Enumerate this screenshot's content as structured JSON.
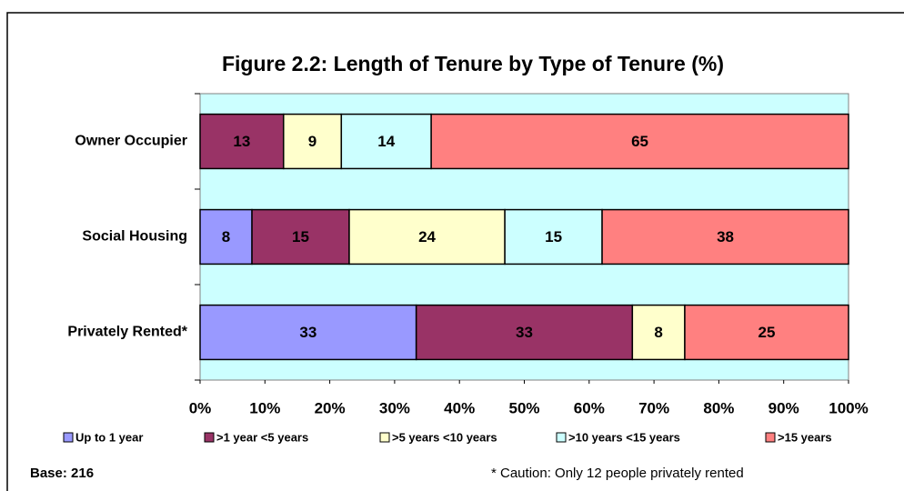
{
  "chart_data": {
    "type": "bar",
    "orientation": "horizontal",
    "stacking": "percent",
    "title": "Figure 2.2: Length of Tenure by Type of Tenure (%)",
    "categories": [
      "Owner Occupier",
      "Social Housing",
      "Privately Rented*"
    ],
    "series": [
      {
        "name": "Up to 1 year",
        "color": "#9999ff",
        "values": [
          null,
          8,
          33
        ]
      },
      {
        "name": ">1 year <5 years",
        "color": "#993366",
        "values": [
          13,
          15,
          33
        ]
      },
      {
        "name": ">5 years <10 years",
        "color": "#ffffcc",
        "values": [
          9,
          24,
          8
        ]
      },
      {
        "name": ">10 years <15 years",
        "color": "#ccffff",
        "values": [
          14,
          15,
          null
        ]
      },
      {
        "name": ">15 years",
        "color": "#ff8080",
        "values": [
          65,
          38,
          25
        ]
      }
    ],
    "xlim": [
      0,
      100
    ],
    "xticks": [
      {
        "value": 0,
        "label": "0%"
      },
      {
        "value": 10,
        "label": "10%"
      },
      {
        "value": 20,
        "label": "20%"
      },
      {
        "value": 30,
        "label": "30%"
      },
      {
        "value": 40,
        "label": "40%"
      },
      {
        "value": 50,
        "label": "50%"
      },
      {
        "value": 60,
        "label": "60%"
      },
      {
        "value": 70,
        "label": "70%"
      },
      {
        "value": 80,
        "label": "80%"
      },
      {
        "value": 90,
        "label": "90%"
      },
      {
        "value": 100,
        "label": "100%"
      }
    ],
    "plot_background": "#ccffff",
    "legend": "bottom",
    "annotations": [
      "Base:  216",
      "* Caution: Only 12 people privately rented"
    ]
  }
}
